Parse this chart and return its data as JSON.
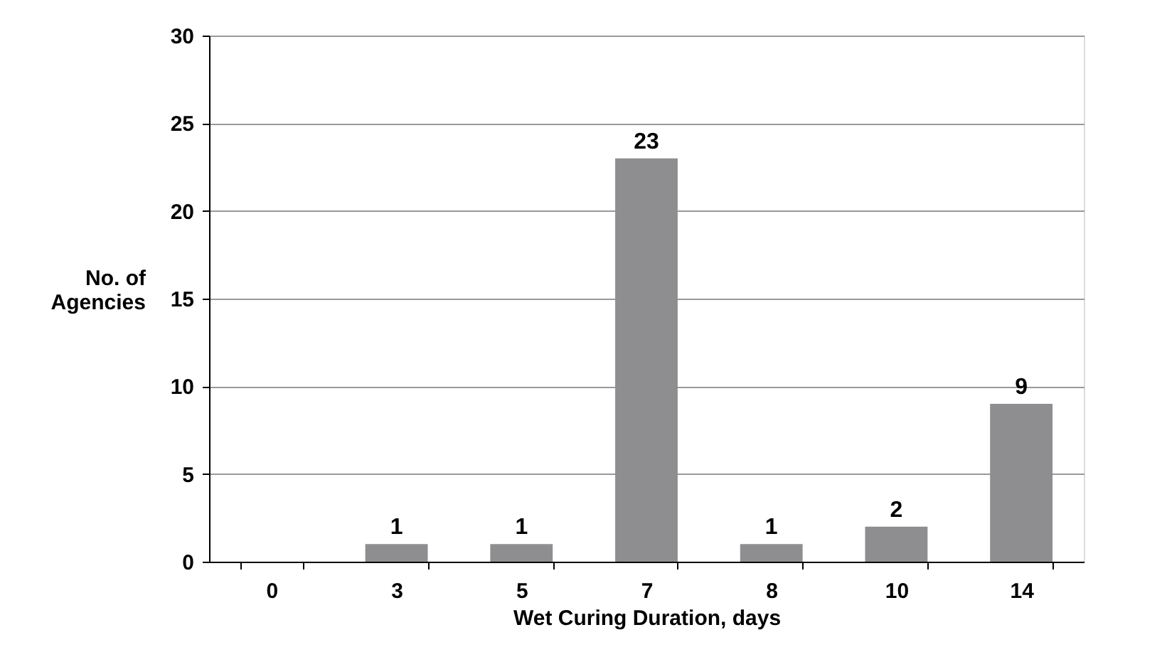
{
  "chart_data": {
    "type": "bar",
    "xlabel": "Wet Curing Duration, days",
    "ylabel": "No. of Agencies",
    "categories": [
      "0",
      "3",
      "5",
      "7",
      "8",
      "10",
      "14"
    ],
    "values": [
      0,
      1,
      1,
      23,
      1,
      2,
      9
    ],
    "value_labels": [
      null,
      "1",
      "1",
      "23",
      "1",
      "2",
      "9"
    ],
    "color": "#8e8e90",
    "ylim": [
      0,
      30
    ],
    "yticks": [
      0,
      5,
      10,
      15,
      20,
      25,
      30
    ],
    "grid": "y"
  }
}
